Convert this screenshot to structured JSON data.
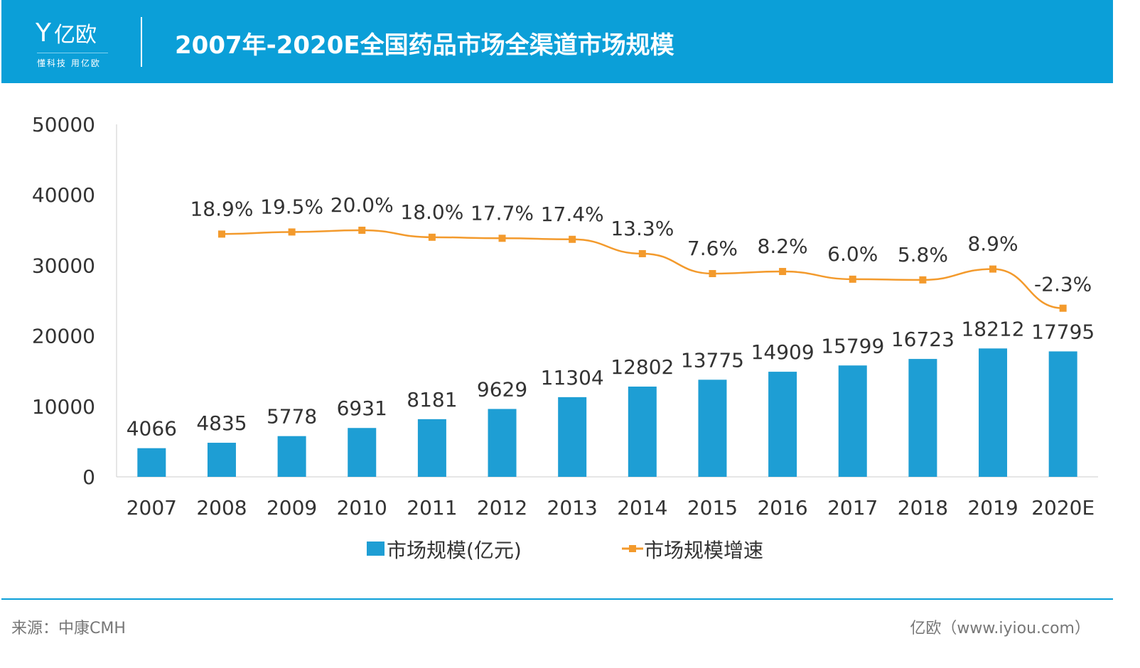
{
  "header": {
    "logo_text": "亿欧",
    "logo_tagline": "懂科技 用亿欧",
    "title": "2007年-2020E全国药品市场全渠道市场规模"
  },
  "footer": {
    "source": "来源：中康CMH",
    "site": "亿欧（www.iyiou.com）"
  },
  "colors": {
    "header": "#0B9FD8",
    "bar": "#1E9ED4",
    "line": "#F39A2C"
  },
  "chart_data": {
    "type": "bar+line",
    "categories": [
      "2007",
      "2008",
      "2009",
      "2010",
      "2011",
      "2012",
      "2013",
      "2014",
      "2015",
      "2016",
      "2017",
      "2018",
      "2019",
      "2020E"
    ],
    "ylim": [
      0,
      50000
    ],
    "yticks": [
      "0",
      "10000",
      "20000",
      "30000",
      "40000",
      "50000"
    ],
    "legend_position": "bottom",
    "grid": false,
    "series": [
      {
        "name": "市场规模(亿元)",
        "type": "bar",
        "values": [
          4066,
          4835,
          5778,
          6931,
          8181,
          9629,
          11304,
          12802,
          13775,
          14909,
          15799,
          16723,
          18212,
          17795
        ],
        "labels": [
          "4066",
          "4835",
          "5778",
          "6931",
          "8181",
          "9629",
          "11304",
          "12802",
          "13775",
          "14909",
          "15799",
          "16723",
          "18212",
          "17795"
        ]
      },
      {
        "name": "市场规模增速",
        "type": "line",
        "axis": "secondary-hidden",
        "values": [
          null,
          18.9,
          19.5,
          20.0,
          18.0,
          17.7,
          17.4,
          13.3,
          7.6,
          8.2,
          6.0,
          5.8,
          8.9,
          -2.3
        ],
        "labels": [
          "",
          "18.9%",
          "19.5%",
          "20.0%",
          "18.0%",
          "17.7%",
          "17.4%",
          "13.3%",
          "7.6%",
          "8.2%",
          "6.0%",
          "5.8%",
          "8.9%",
          "-2.3%"
        ]
      }
    ]
  }
}
